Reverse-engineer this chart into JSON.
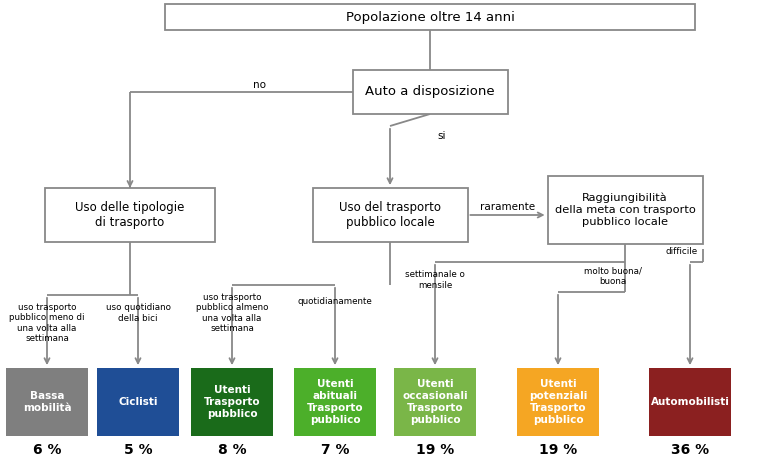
{
  "node_root": "Popolazione oltre 14 anni",
  "node_auto": "Auto a disposizione",
  "node_uso_tipo": "Uso delle tipologie\ndi trasporto",
  "node_uso_tp": "Uso del trasporto\npubblico locale",
  "node_raggiung": "Raggiungibilità\ndella meta con trasporto\npubblico locale",
  "label_no": "no",
  "label_si": "si",
  "label_raramente": "raramente",
  "label_molto_buona": "molto buona/\nbuona",
  "label_difficile": "difficile",
  "label_uso_meno": "uso trasporto\npubblico meno di\nuna volta alla\nsettimana",
  "label_uso_bici": "uso quotidiano\ndella bici",
  "label_uso_almeno": "uso trasporto\npubblico almeno\nuna volta alla\nsettimana",
  "label_quotidianamente": "quotidianamente",
  "label_settimanale": "settimanale o\nmensile",
  "categories": [
    {
      "label": "Bassa\nmobilità",
      "pct": "6 %",
      "color": "#7f7f7f"
    },
    {
      "label": "Ciclisti",
      "pct": "5 %",
      "color": "#1f4e96"
    },
    {
      "label": "Utenti\nTrasporto\npubblico",
      "pct": "8 %",
      "color": "#1a6b1a"
    },
    {
      "label": "Utenti\nabituali\nTrasporto\npubblico",
      "pct": "7 %",
      "color": "#4caf2a"
    },
    {
      "label": "Utenti\noccasionali\nTrasporto\npubblico",
      "pct": "19 %",
      "color": "#7ab648"
    },
    {
      "label": "Utenti\npotenziali\nTrasporto\npubblico",
      "pct": "19 %",
      "color": "#f5a623"
    },
    {
      "label": "Automobilisti",
      "pct": "36 %",
      "color": "#8b2020"
    }
  ],
  "line_color": "#888888",
  "box_edge_color": "#888888",
  "background": "#ffffff",
  "text_white": "#ffffff",
  "text_dark": "#000000"
}
